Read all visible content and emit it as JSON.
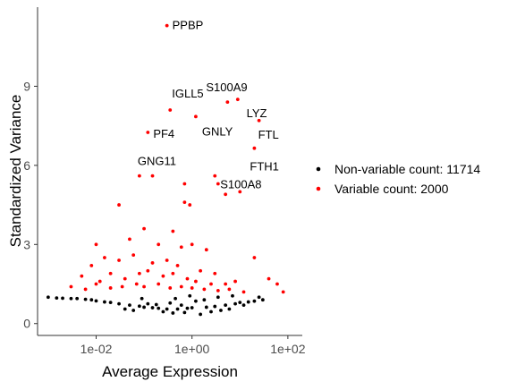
{
  "chart_data": {
    "type": "scatter",
    "title": "",
    "xlabel": "Average Expression",
    "ylabel": "Standardized Variance",
    "x_scale": "log10",
    "xlim": [
      0.0006,
      200
    ],
    "ylim": [
      -0.45,
      12.0
    ],
    "x_ticks": [
      {
        "value": 0.01,
        "label": "1e-02"
      },
      {
        "value": 1,
        "label": "1e+00"
      },
      {
        "value": 100,
        "label": "1e+02"
      }
    ],
    "y_ticks": [
      {
        "value": 0,
        "label": "0"
      },
      {
        "value": 3,
        "label": "3"
      },
      {
        "value": 6,
        "label": "6"
      },
      {
        "value": 9,
        "label": "9"
      }
    ],
    "grid": false,
    "legend_position": "right",
    "legend": [
      {
        "label": "Non-variable count: 11714",
        "color": "#000000"
      },
      {
        "label": "Variable count: 2000",
        "color": "#ff0000"
      }
    ],
    "series": [
      {
        "name": "Non-variable count: 11714",
        "color": "#000000",
        "points": [
          [
            0.001,
            1.0
          ],
          [
            0.0015,
            0.97
          ],
          [
            0.002,
            0.96
          ],
          [
            0.003,
            0.95
          ],
          [
            0.004,
            0.95
          ],
          [
            0.006,
            0.92
          ],
          [
            0.008,
            0.9
          ],
          [
            0.01,
            0.86
          ],
          [
            0.015,
            0.82
          ],
          [
            0.02,
            0.8
          ],
          [
            0.03,
            0.75
          ],
          [
            0.05,
            0.7
          ],
          [
            0.08,
            0.66
          ],
          [
            0.1,
            0.62
          ],
          [
            0.15,
            0.6
          ],
          [
            0.2,
            0.58
          ],
          [
            0.3,
            0.55
          ],
          [
            0.5,
            0.55
          ],
          [
            0.8,
            0.58
          ],
          [
            1.0,
            0.6
          ],
          [
            2.0,
            0.62
          ],
          [
            3.0,
            0.65
          ],
          [
            5.0,
            0.7
          ],
          [
            8.0,
            0.75
          ],
          [
            10.0,
            0.8
          ],
          [
            15.0,
            0.82
          ],
          [
            20.0,
            0.85
          ],
          [
            30.0,
            0.9
          ],
          [
            1.5,
            0.35
          ],
          [
            2.5,
            0.45
          ],
          [
            4.0,
            0.5
          ],
          [
            6.0,
            0.55
          ],
          [
            12.0,
            0.7
          ],
          [
            25.0,
            1.0
          ],
          [
            0.04,
            0.55
          ],
          [
            0.06,
            0.5
          ],
          [
            0.25,
            0.45
          ],
          [
            0.4,
            0.4
          ],
          [
            0.7,
            0.42
          ],
          [
            0.12,
            0.75
          ],
          [
            0.18,
            0.72
          ],
          [
            0.35,
            0.78
          ],
          [
            0.6,
            0.7
          ],
          [
            1.2,
            0.85
          ],
          [
            1.8,
            0.9
          ],
          [
            3.5,
            1.0
          ],
          [
            7.0,
            1.05
          ],
          [
            0.09,
            0.95
          ],
          [
            0.45,
            0.95
          ],
          [
            0.9,
            1.05
          ]
        ]
      },
      {
        "name": "Variable count: 2000",
        "color": "#ff0000",
        "points": [
          [
            0.3,
            11.3
          ],
          [
            5.5,
            8.4
          ],
          [
            9.0,
            8.5
          ],
          [
            0.35,
            8.1
          ],
          [
            1.2,
            7.85
          ],
          [
            25.0,
            7.7
          ],
          [
            0.12,
            7.25
          ],
          [
            20.0,
            6.65
          ],
          [
            0.08,
            5.6
          ],
          [
            0.15,
            5.6
          ],
          [
            3.0,
            5.6
          ],
          [
            0.7,
            5.3
          ],
          [
            3.5,
            5.3
          ],
          [
            0.03,
            4.5
          ],
          [
            0.7,
            4.6
          ],
          [
            0.9,
            4.5
          ],
          [
            5.0,
            4.9
          ],
          [
            10.0,
            5.0
          ],
          [
            0.01,
            3.0
          ],
          [
            0.05,
            3.2
          ],
          [
            0.1,
            3.6
          ],
          [
            0.2,
            3.0
          ],
          [
            0.4,
            3.5
          ],
          [
            0.6,
            2.9
          ],
          [
            1.0,
            3.0
          ],
          [
            2.0,
            2.8
          ],
          [
            0.008,
            2.2
          ],
          [
            0.015,
            2.5
          ],
          [
            0.03,
            2.4
          ],
          [
            0.06,
            2.6
          ],
          [
            0.15,
            2.3
          ],
          [
            0.3,
            2.4
          ],
          [
            0.5,
            2.2
          ],
          [
            1.5,
            2.0
          ],
          [
            3.0,
            1.9
          ],
          [
            20.0,
            2.5
          ],
          [
            0.005,
            1.8
          ],
          [
            0.012,
            1.6
          ],
          [
            0.02,
            1.9
          ],
          [
            0.04,
            1.7
          ],
          [
            0.08,
            1.9
          ],
          [
            0.12,
            2.0
          ],
          [
            0.25,
            1.8
          ],
          [
            0.4,
            1.9
          ],
          [
            0.8,
            1.7
          ],
          [
            1.2,
            1.6
          ],
          [
            2.5,
            1.5
          ],
          [
            5.0,
            1.5
          ],
          [
            8.0,
            1.6
          ],
          [
            40.0,
            1.7
          ],
          [
            0.003,
            1.4
          ],
          [
            0.006,
            1.3
          ],
          [
            0.01,
            1.5
          ],
          [
            0.02,
            1.35
          ],
          [
            0.035,
            1.4
          ],
          [
            0.07,
            1.5
          ],
          [
            0.1,
            1.4
          ],
          [
            0.2,
            1.5
          ],
          [
            0.35,
            1.35
          ],
          [
            0.6,
            1.4
          ],
          [
            1.0,
            1.35
          ],
          [
            1.8,
            1.3
          ],
          [
            3.5,
            1.25
          ],
          [
            6.0,
            1.3
          ],
          [
            12.0,
            1.2
          ],
          [
            60.0,
            1.5
          ],
          [
            80.0,
            1.2
          ]
        ]
      }
    ],
    "annotations": [
      {
        "label": "PPBP",
        "x": 0.3,
        "y": 11.3
      },
      {
        "label": "S100A9",
        "x": 5.5,
        "y": 8.4
      },
      {
        "label": "IGLL5",
        "x": 0.35,
        "y": 8.1
      },
      {
        "label": "LYZ",
        "x": 25.0,
        "y": 7.7
      },
      {
        "label": "GNLY",
        "x": 1.2,
        "y": 7.85
      },
      {
        "label": "FTL",
        "x": 25.0,
        "y": 7.7
      },
      {
        "label": "PF4",
        "x": 0.12,
        "y": 7.25
      },
      {
        "label": "FTH1",
        "x": 20.0,
        "y": 6.65
      },
      {
        "label": "GNG11",
        "x": 0.08,
        "y": 5.6
      },
      {
        "label": "S100A8",
        "x": 3.0,
        "y": 5.6
      }
    ]
  }
}
